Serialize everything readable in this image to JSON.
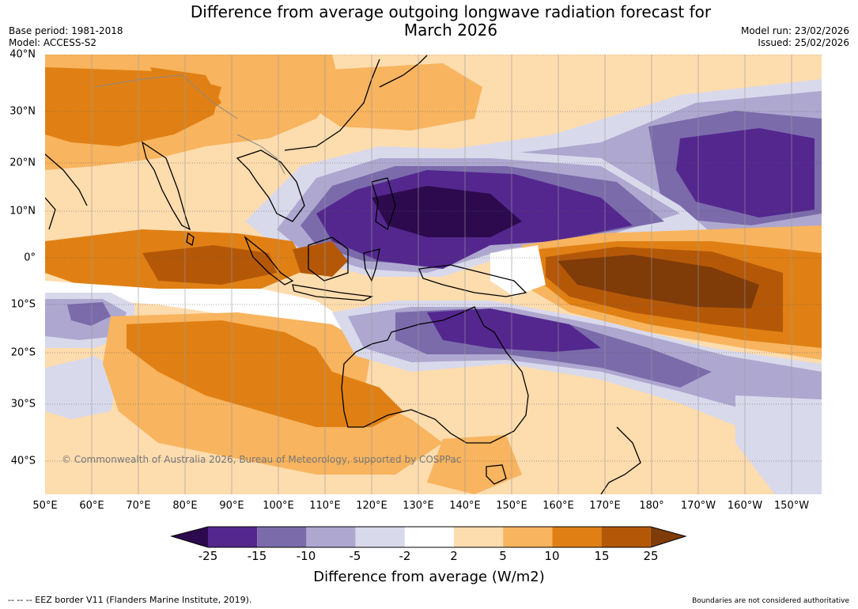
{
  "header": {
    "title_line1": "Difference from average outgoing longwave radiation forecast for",
    "title_line2": "March 2026",
    "base_period": "Base period: 1981-2018",
    "model": "Model: ACCESS-S2",
    "model_run": "Model run: 23/02/2026",
    "issued": "Issued: 25/02/2026"
  },
  "map": {
    "lat_labels": [
      "40°N",
      "30°N",
      "20°N",
      "10°N",
      "0°",
      "10°S",
      "20°S",
      "30°S",
      "40°S"
    ],
    "lon_labels": [
      "50°E",
      "60°E",
      "70°E",
      "80°E",
      "90°E",
      "100°E",
      "110°E",
      "120°E",
      "130°E",
      "140°E",
      "150°E",
      "160°E",
      "170°E",
      "180°",
      "170°W",
      "160°W",
      "150°W"
    ],
    "copyright": "© Commonwealth of Australia 2026, Bureau of Meteorology, supported by COSPPac"
  },
  "legend": {
    "title": "Difference from average (W/m2)",
    "ticks": [
      "-25",
      "-15",
      "-10",
      "-5",
      "-2",
      "2",
      "5",
      "10",
      "15",
      "25"
    ],
    "colors": [
      "#2d0a4e",
      "#54278f",
      "#7b6bab",
      "#aea8d0",
      "#d9d9ec",
      "#ffffff",
      "#fddcae",
      "#f8b45e",
      "#e08014",
      "#b45808",
      "#7f3b08"
    ]
  },
  "footer": {
    "eez_note": "--  --  -- EEZ border V11 (Flanders Marine Institute, 2019).",
    "boundaries_note": "Boundaries are not considered authoritative"
  }
}
